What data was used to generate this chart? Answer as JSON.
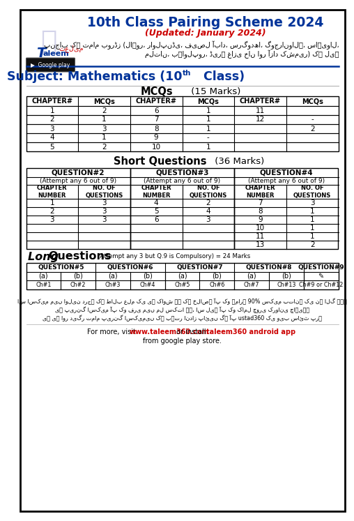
{
  "title_main": "10th Class Pairing Scheme 2024",
  "title_updated": "(Updated: January 2024)",
  "subject_title": "Subject: Mathematics (10th Class)",
  "mcq_headers": [
    "CHAPTER#",
    "MCQs",
    "CHAPTER#",
    "MCQs",
    "CHAPTER#",
    "MCQs"
  ],
  "mcq_data": [
    [
      "1",
      "2",
      "6",
      "1",
      "11",
      ""
    ],
    [
      "2",
      "1",
      "7",
      "1",
      "12",
      "-"
    ],
    [
      "3",
      "3",
      "8",
      "1",
      "",
      "2"
    ],
    [
      "4",
      "1",
      "9",
      "-",
      "",
      ""
    ],
    [
      "5",
      "2",
      "10",
      "1",
      "",
      ""
    ]
  ],
  "sq_q2_data": [
    [
      "1",
      "3"
    ],
    [
      "2",
      "3"
    ],
    [
      "3",
      "3"
    ]
  ],
  "sq_q3_data": [
    [
      "4",
      "2"
    ],
    [
      "5",
      "4"
    ],
    [
      "6",
      "3"
    ]
  ],
  "sq_q4_data": [
    [
      "7",
      "3"
    ],
    [
      "8",
      "1"
    ],
    [
      "9",
      "1"
    ],
    [
      "10",
      "1"
    ],
    [
      "11",
      "1"
    ],
    [
      "13",
      "2"
    ]
  ],
  "lq_data": [
    "Ch#1",
    "Ch#2",
    "Ch#3",
    "Ch#4",
    "Ch#5",
    "Ch#6",
    "Ch#7",
    "Ch#13",
    "Ch#9 or Ch#12"
  ],
  "color_title": "#003399",
  "color_updated": "#cc0000",
  "color_subject": "#003399",
  "color_url": "#cc0000",
  "color_app": "#cc0000"
}
